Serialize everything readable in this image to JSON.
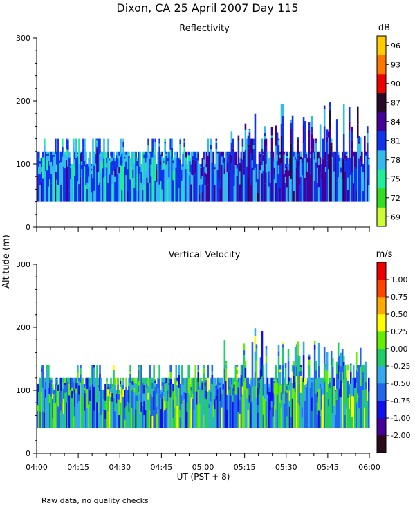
{
  "chart_data": {
    "type": "heatmap",
    "title": "Dixon, CA 25 April 2007  Day 115",
    "ylabel": "Altitude (m)",
    "xlabel": "UT  (PST + 8)",
    "footnote": "Raw data, no quality checks",
    "x_range_minutes": [
      0,
      120
    ],
    "xticks": [
      {
        "minute": 0,
        "label": "04:00"
      },
      {
        "minute": 15,
        "label": "04:15"
      },
      {
        "minute": 30,
        "label": "04:30"
      },
      {
        "minute": 45,
        "label": "04:45"
      },
      {
        "minute": 60,
        "label": "05:00"
      },
      {
        "minute": 75,
        "label": "05:15"
      },
      {
        "minute": 90,
        "label": "05:30"
      },
      {
        "minute": 105,
        "label": "05:45"
      },
      {
        "minute": 120,
        "label": "06:00"
      }
    ],
    "yticks": [
      0,
      100,
      200,
      300
    ],
    "ylim": [
      0,
      300
    ],
    "panels": [
      {
        "title": "Reflectivity",
        "unit": "dB",
        "colorbar": {
          "labels": [
            "69",
            "72",
            "75",
            "78",
            "81",
            "84",
            "87",
            "90",
            "93",
            "96"
          ],
          "colors": [
            "#ccff33",
            "#33dd22",
            "#22ee99",
            "#33bbee",
            "#1133ee",
            "#440099",
            "#2a0a2a",
            "#ee0000",
            "#ff7700",
            "#ffcc00"
          ]
        },
        "data_floor_m": 40,
        "typical_top_m": 120,
        "max_top_m": 200
      },
      {
        "title": "Vertical Velocity",
        "unit": "m/s",
        "colorbar": {
          "labels": [
            "-2.00",
            "-1.00",
            "-0.75",
            "-0.50",
            "-0.25",
            "0.00",
            "0.25",
            "0.50",
            "0.75",
            "1.00"
          ],
          "colors": [
            "#2a0a1a",
            "#440099",
            "#1111ee",
            "#2266ee",
            "#33aaee",
            "#22cc66",
            "#66ee00",
            "#ffff00",
            "#ffaa00",
            "#ff4400",
            "#ee0000"
          ]
        },
        "data_floor_m": 40,
        "typical_top_m": 120,
        "max_top_m": 200
      }
    ]
  }
}
